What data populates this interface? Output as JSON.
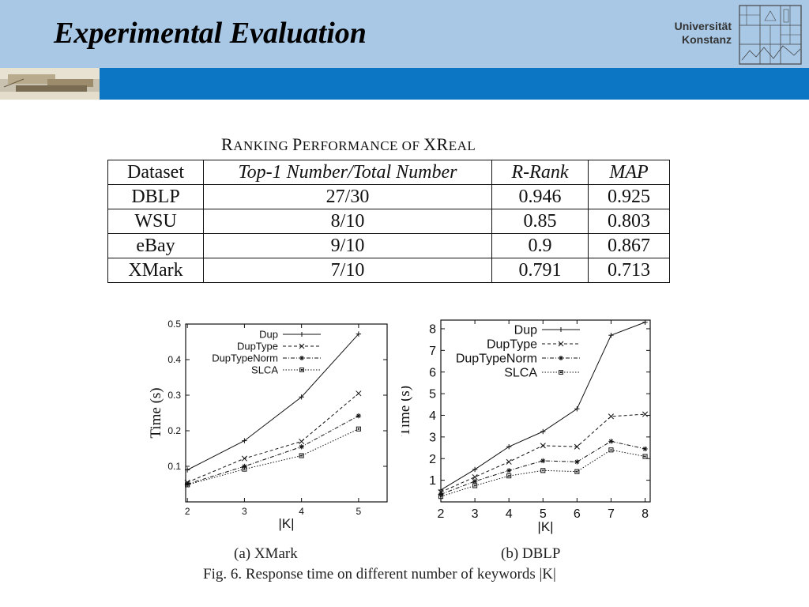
{
  "header": {
    "title": "Experimental Evaluation",
    "university_line1": "Universität",
    "university_line2": "Konstanz"
  },
  "table": {
    "caption_parts": [
      "R",
      "ANKING ",
      "P",
      "ERFORMANCE OF ",
      "XR",
      "EAL"
    ],
    "columns": [
      "Dataset",
      "Top-1 Number/Total Number",
      "R-Rank",
      "MAP"
    ],
    "rows": [
      [
        "DBLP",
        "27/30",
        "0.946",
        "0.925"
      ],
      [
        "WSU",
        "8/10",
        "0.85",
        "0.803"
      ],
      [
        "eBay",
        "9/10",
        "0.9",
        "0.867"
      ],
      [
        "XMark",
        "7/10",
        "0.791",
        "0.713"
      ]
    ]
  },
  "chart_data": [
    {
      "type": "line",
      "subcaption": "(a) XMark",
      "xlabel": "|K|",
      "ylabel": "Time (s)",
      "x": [
        2,
        3,
        4,
        5
      ],
      "xticks": [
        "2",
        "3",
        "4",
        "5"
      ],
      "yticks": [
        "0.1",
        "0.2",
        "0.3",
        "0.4",
        "0.5"
      ],
      "xlim": [
        1.97,
        5.5
      ],
      "ylim": [
        0,
        0.5
      ],
      "legend_position": "top-left",
      "series": [
        {
          "name": "Dup",
          "marker": "+",
          "dash": "solid",
          "values": [
            0.09,
            0.172,
            0.295,
            0.472
          ]
        },
        {
          "name": "DupType",
          "marker": "x",
          "dash": "dashed",
          "values": [
            0.055,
            0.122,
            0.17,
            0.305
          ]
        },
        {
          "name": "DupTypeNorm",
          "marker": "*",
          "dash": "dashdot",
          "values": [
            0.05,
            0.1,
            0.155,
            0.242
          ]
        },
        {
          "name": "SLCA",
          "marker": "square",
          "dash": "dotted",
          "values": [
            0.048,
            0.092,
            0.13,
            0.205
          ]
        }
      ]
    },
    {
      "type": "line",
      "subcaption": "(b) DBLP",
      "xlabel": "|K|",
      "ylabel": "Time (s)",
      "x": [
        2,
        3,
        4,
        5,
        6,
        7,
        8
      ],
      "xticks": [
        "2",
        "3",
        "4",
        "5",
        "6",
        "7",
        "8"
      ],
      "yticks": [
        "1",
        "2",
        "3",
        "4",
        "5",
        "6",
        "7",
        "8"
      ],
      "xlim": [
        2,
        8.15
      ],
      "ylim": [
        0,
        8.4
      ],
      "legend_position": "top-left",
      "series": [
        {
          "name": "Dup",
          "marker": "+",
          "dash": "solid",
          "values": [
            0.55,
            1.5,
            2.55,
            3.25,
            4.3,
            7.7,
            8.3
          ]
        },
        {
          "name": "DupType",
          "marker": "x",
          "dash": "dashed",
          "values": [
            0.45,
            1.15,
            1.85,
            2.6,
            2.55,
            3.95,
            4.05
          ]
        },
        {
          "name": "DupTypeNorm",
          "marker": "*",
          "dash": "dashdot",
          "values": [
            0.35,
            0.95,
            1.45,
            1.9,
            1.85,
            2.8,
            2.45
          ]
        },
        {
          "name": "SLCA",
          "marker": "square",
          "dash": "dotted",
          "values": [
            0.25,
            0.75,
            1.2,
            1.45,
            1.4,
            2.4,
            2.1
          ]
        }
      ]
    }
  ],
  "figure_caption": "Fig. 6.    Response time on different number of keywords |K|"
}
